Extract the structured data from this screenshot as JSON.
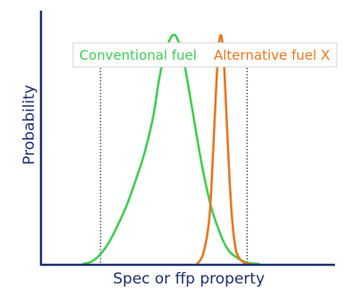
{
  "chart_data": {
    "type": "line",
    "title": "",
    "xlabel": "Spec or ffp property",
    "ylabel": "Probability",
    "xlim": [
      0,
      100
    ],
    "ylim": [
      0,
      1
    ],
    "grid": false,
    "legend_placement": "top",
    "spec_limits": [
      20,
      70
    ],
    "colors": {
      "axis": "#1f2f6e",
      "legend_border": "#d6d6d6",
      "spec_line": "#333333"
    },
    "series": [
      {
        "name": "Conventional fuel",
        "color": "#44cc55",
        "x": [
          14,
          17,
          20,
          23,
          26,
          29,
          32,
          35,
          38,
          40,
          42,
          44,
          45,
          46,
          48,
          50,
          52,
          54,
          56,
          58,
          60,
          62,
          64,
          66,
          68,
          70,
          72,
          74
        ],
        "y": [
          0.0,
          0.01,
          0.04,
          0.09,
          0.16,
          0.24,
          0.34,
          0.45,
          0.6,
          0.75,
          0.86,
          0.92,
          0.93,
          0.92,
          0.85,
          0.72,
          0.58,
          0.44,
          0.32,
          0.22,
          0.15,
          0.09,
          0.05,
          0.03,
          0.015,
          0.005,
          0.002,
          0.0
        ]
      },
      {
        "name": "Alternative fuel X",
        "color": "#e87722",
        "x": [
          53,
          55,
          57,
          58,
          59,
          60,
          61,
          62,
          63,
          64,
          65,
          66,
          67,
          69,
          71
        ],
        "y": [
          0.0,
          0.04,
          0.17,
          0.35,
          0.6,
          0.83,
          0.93,
          0.84,
          0.6,
          0.35,
          0.17,
          0.07,
          0.03,
          0.005,
          0.0
        ]
      }
    ]
  }
}
